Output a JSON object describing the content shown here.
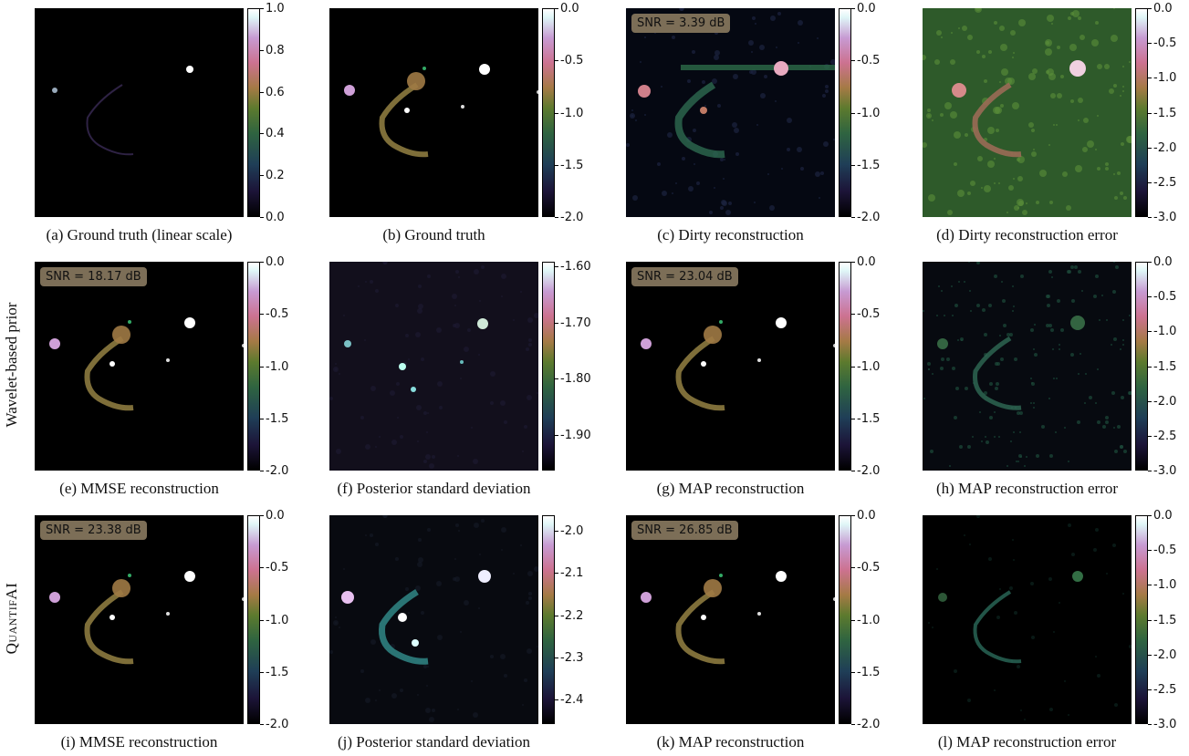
{
  "row_labels": [
    "Wavelet-based prior",
    "QuantifAI"
  ],
  "panels": [
    {
      "id": "a",
      "caption": "(a) Ground truth (linear scale)",
      "snr": "",
      "ticks": [
        "1.0",
        "0.8",
        "0.6",
        "0.4",
        "0.2",
        "0.0"
      ],
      "look": "gt_linear"
    },
    {
      "id": "b",
      "caption": "(b) Ground truth",
      "snr": "",
      "ticks": [
        "0.0",
        "-0.5",
        "-1.0",
        "-1.5",
        "-2.0"
      ],
      "look": "recon"
    },
    {
      "id": "c",
      "caption": "(c) Dirty reconstruction",
      "snr": "SNR = 3.39 dB",
      "ticks": [
        "0.0",
        "-0.5",
        "-1.0",
        "-1.5",
        "-2.0"
      ],
      "look": "dirty"
    },
    {
      "id": "d",
      "caption": "(d) Dirty reconstruction error",
      "snr": "",
      "ticks": [
        "0.0",
        "-0.5",
        "-1.0",
        "-1.5",
        "-2.0",
        "-2.5",
        "-3.0"
      ],
      "look": "dirty_err"
    },
    {
      "id": "e",
      "caption": "(e) MMSE reconstruction",
      "snr": "SNR = 18.17 dB",
      "ticks": [
        "0.0",
        "-0.5",
        "-1.0",
        "-1.5",
        "-2.0"
      ],
      "look": "recon"
    },
    {
      "id": "f",
      "caption": "(f) Posterior standard deviation",
      "snr": "",
      "ticks": [
        "-1.60",
        "-1.70",
        "-1.80",
        "-1.90"
      ],
      "look": "std_w"
    },
    {
      "id": "g",
      "caption": "(g) MAP reconstruction",
      "snr": "SNR = 23.04 dB",
      "ticks": [
        "0.0",
        "-0.5",
        "-1.0",
        "-1.5",
        "-2.0"
      ],
      "look": "recon"
    },
    {
      "id": "h",
      "caption": "(h) MAP reconstruction error",
      "snr": "",
      "ticks": [
        "0.0",
        "-0.5",
        "-1.0",
        "-1.5",
        "-2.0",
        "-2.5",
        "-3.0"
      ],
      "look": "err_w"
    },
    {
      "id": "i",
      "caption": "(i) MMSE reconstruction",
      "snr": "SNR = 23.38 dB",
      "ticks": [
        "0.0",
        "-0.5",
        "-1.0",
        "-1.5",
        "-2.0"
      ],
      "look": "recon"
    },
    {
      "id": "j",
      "caption": "(j) Posterior standard deviation",
      "snr": "",
      "ticks": [
        "-2.0",
        "-2.1",
        "-2.2",
        "-2.3",
        "-2.4"
      ],
      "look": "std_q"
    },
    {
      "id": "k",
      "caption": "(k) MAP reconstruction",
      "snr": "SNR = 26.85 dB",
      "ticks": [
        "0.0",
        "-0.5",
        "-1.0",
        "-1.5",
        "-2.0"
      ],
      "look": "recon"
    },
    {
      "id": "l",
      "caption": "(l) MAP reconstruction error",
      "snr": "",
      "ticks": [
        "0.0",
        "-0.5",
        "-1.0",
        "-1.5",
        "-2.0",
        "-2.5",
        "-3.0"
      ],
      "look": "err_q"
    }
  ]
}
